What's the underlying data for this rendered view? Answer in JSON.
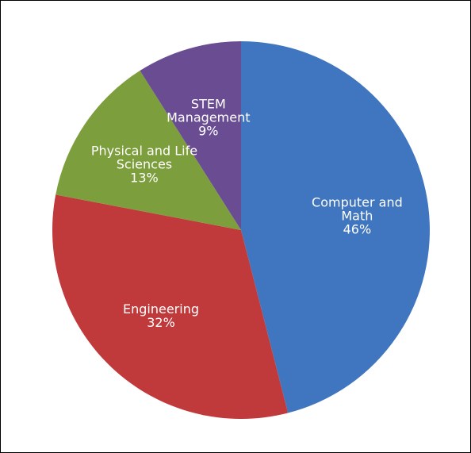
{
  "chart_data": {
    "type": "pie",
    "categories": [
      "Computer and Math",
      "Engineering",
      "Physical and Life Sciences",
      "STEM Management"
    ],
    "values": [
      46,
      32,
      13,
      9
    ],
    "value_labels": [
      "46%",
      "32%",
      "13%",
      "9%"
    ],
    "colors": [
      "#4076bf",
      "#c0393b",
      "#7d9e3c",
      "#6a4c93"
    ]
  }
}
